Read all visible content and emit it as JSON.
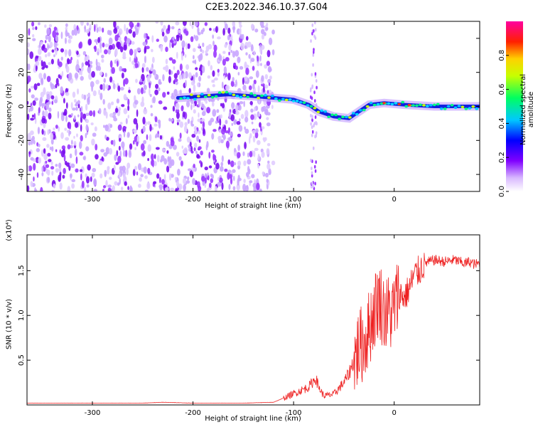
{
  "page_title": "C2E3.2022.346.10.37.G04",
  "chart_data": [
    {
      "type": "heatmap",
      "title": "C2E3.2022.346.10.37.G04",
      "xlabel": "Height of straight line (km)",
      "ylabel": "Frequency (Hz)",
      "xlim": [
        -365,
        85
      ],
      "ylim": [
        -50,
        50
      ],
      "x_ticks": [
        "-300",
        "-200",
        "-100",
        "0"
      ],
      "y_ticks": [
        "-40",
        "-20",
        "0",
        "20",
        "40"
      ],
      "colorbar": {
        "label": "Normalized spectral amplitude",
        "range": [
          0.0,
          1.0
        ],
        "ticks": [
          "0.0",
          "0.2",
          "0.4",
          "0.6",
          "0.8"
        ],
        "colors": [
          "#ffffff",
          "#d8b8ff",
          "#8000ff",
          "#0000ff",
          "#00c8ff",
          "#00ff60",
          "#c8ff00",
          "#ffd000",
          "#ff2000",
          "#ff00a0"
        ]
      },
      "signal_track": [
        {
          "x": -215,
          "y": 5.0
        },
        {
          "x": -190,
          "y": 6.0
        },
        {
          "x": -165,
          "y": 7.0
        },
        {
          "x": -140,
          "y": 6.0
        },
        {
          "x": -120,
          "y": 5.0
        },
        {
          "x": -100,
          "y": 4.0
        },
        {
          "x": -85,
          "y": 1.0
        },
        {
          "x": -75,
          "y": -3.0
        },
        {
          "x": -60,
          "y": -6.0
        },
        {
          "x": -45,
          "y": -7.0
        },
        {
          "x": -35,
          "y": -3.0
        },
        {
          "x": -25,
          "y": 1.0
        },
        {
          "x": -10,
          "y": 2.0
        },
        {
          "x": 10,
          "y": 1.0
        },
        {
          "x": 40,
          "y": 0.0
        },
        {
          "x": 85,
          "y": 0.0
        }
      ],
      "noise_region": {
        "x_from": -365,
        "x_to": -140,
        "y_from": -50,
        "y_to": 50
      }
    },
    {
      "type": "line",
      "xlabel": "Height of straight line (km)",
      "ylabel": "SNR (10 * v/v)",
      "y_multiplier": "(x10⁴)",
      "xlim": [
        -365,
        85
      ],
      "ylim": [
        0,
        1.9
      ],
      "x_ticks": [
        "-300",
        "-200",
        "-100",
        "0"
      ],
      "y_ticks": [
        "0.5",
        "1.0",
        "1.5"
      ],
      "color": "#ee2222",
      "series": [
        {
          "x": [
            -365,
            -300,
            -250,
            -230,
            -200,
            -150,
            -120,
            -105,
            -95,
            -85,
            -78,
            -75,
            -70,
            -60,
            -50,
            -45,
            -40,
            -35,
            -30,
            -25,
            -20,
            -15,
            -12,
            -8,
            -5,
            -2,
            0,
            5,
            10,
            15,
            20,
            25,
            30,
            40,
            50,
            60,
            70,
            75,
            80,
            85
          ],
          "y": [
            0.02,
            0.02,
            0.02,
            0.03,
            0.02,
            0.02,
            0.03,
            0.1,
            0.15,
            0.2,
            0.3,
            0.2,
            0.1,
            0.12,
            0.25,
            0.35,
            0.5,
            0.65,
            0.7,
            0.85,
            1.05,
            1.2,
            1.1,
            1.0,
            1.05,
            1.0,
            1.1,
            1.25,
            1.2,
            1.3,
            1.45,
            1.5,
            1.58,
            1.62,
            1.6,
            1.62,
            1.58,
            1.6,
            1.57,
            1.58
          ]
        }
      ]
    }
  ]
}
